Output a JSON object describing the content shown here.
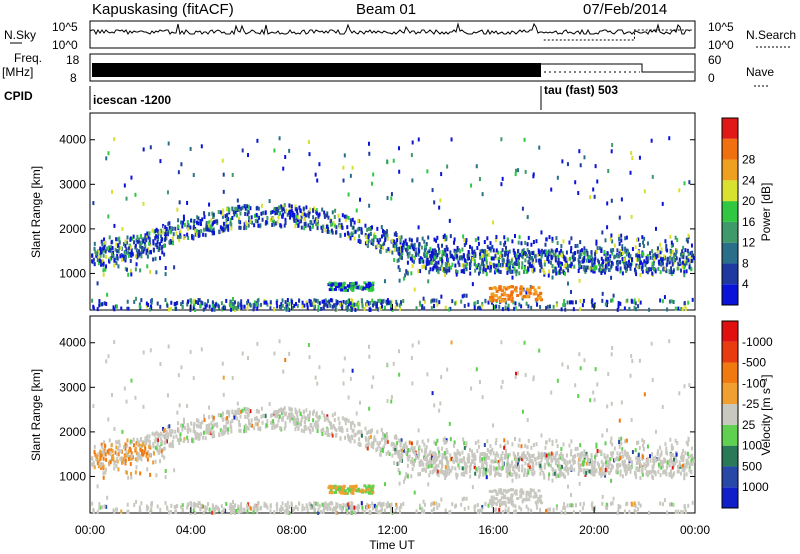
{
  "header": {
    "station": "Kapuskasing (fitACF)",
    "beam": "Beam 01",
    "date": "07/Feb/2014"
  },
  "top_panels": {
    "nsky_label": "N.Sky",
    "nsky_ticks": [
      "10^5",
      "10^0"
    ],
    "nsearch_label": "N.Search",
    "nsearch_ticks": [
      "10^5",
      "10^0"
    ],
    "freq_label": "Freq.",
    "freq_unit": "[MHz]",
    "freq_ticks": [
      "18",
      "8"
    ],
    "nave_label": "Nave",
    "nave_ticks": [
      "60",
      "0"
    ],
    "cpid_label": "CPID",
    "cpid_segments": [
      {
        "label": "icescan -1200",
        "start_hour": 0
      },
      {
        "label": "tau (fast) 503",
        "start_hour": 18
      }
    ]
  },
  "chart_data": [
    {
      "type": "heatmap",
      "name": "power",
      "ylabel": "Slant Range [km]",
      "xlim": [
        0,
        24
      ],
      "ylim": [
        180,
        4600
      ],
      "y_ticks": [
        1000,
        2000,
        3000,
        4000
      ],
      "colorbar": {
        "label": "Power [dB]",
        "ticks": [
          "4",
          "8",
          "12",
          "16",
          "20",
          "24",
          "28"
        ],
        "colors": [
          "#0a14d8",
          "#1e3aa0",
          "#2a6f8a",
          "#3f9a6a",
          "#2fc840",
          "#d8e030",
          "#f0a020",
          "#f07010",
          "#e01818"
        ]
      }
    },
    {
      "type": "heatmap",
      "name": "velocity",
      "ylabel": "Slant Range [km]",
      "xlabel": "Time UT",
      "xlim": [
        0,
        24
      ],
      "ylim": [
        180,
        4600
      ],
      "y_ticks": [
        1000,
        2000,
        3000,
        4000
      ],
      "x_tick_labels": [
        "00:00",
        "04:00",
        "08:00",
        "12:00",
        "16:00",
        "20:00",
        "00:00"
      ],
      "x_tick_hours": [
        0,
        4,
        8,
        12,
        16,
        20,
        24
      ],
      "colorbar": {
        "label": "Velocity [m s⁻¹]",
        "ticks": [
          "1000",
          "500",
          "100",
          "25",
          "-25",
          "-100",
          "-500",
          "-1000"
        ],
        "colors": [
          "#1020c8",
          "#2848a8",
          "#2a7a5a",
          "#5fd050",
          "#c8c8c0",
          "#f0a030",
          "#f07a10",
          "#e83c10",
          "#e01010"
        ]
      }
    }
  ]
}
